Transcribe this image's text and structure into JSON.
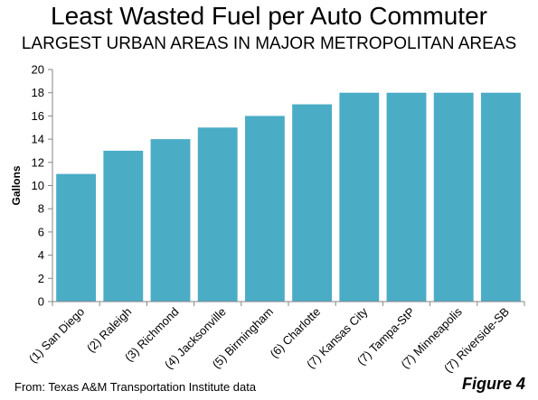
{
  "chart_data": {
    "type": "bar",
    "title": "Least Wasted Fuel per Auto Commuter",
    "subtitle": "LARGEST URBAN AREAS IN MAJOR METROPOLITAN AREAS",
    "xlabel": "",
    "ylabel": "Gallons",
    "categories": [
      "(1) San Diego",
      "(2) Raleigh",
      "(3) Richmond",
      "(4) Jacksonville",
      "(5) Birmingham",
      "(6) Charlotte",
      "(7) Kansas City",
      "(7) Tampa-StP",
      "(7) Minneapolis",
      "(7) Riverside-SB"
    ],
    "values": [
      11,
      13,
      14,
      15,
      16,
      17,
      18,
      18,
      18,
      18
    ],
    "ylim": [
      0,
      20
    ],
    "yticks": [
      0,
      2,
      4,
      6,
      8,
      10,
      12,
      14,
      16,
      18,
      20
    ],
    "grid": false,
    "bar_color": "#4BACC6"
  },
  "footer": {
    "source": "From: Texas A&M Transportation Institute data",
    "figure_label": "Figure 4"
  }
}
